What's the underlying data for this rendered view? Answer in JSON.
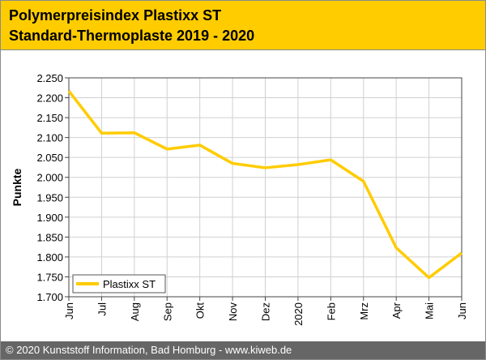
{
  "header": {
    "title_line1": "Polymerpreisindex Plastixx ST",
    "title_line2": "Standard-Thermoplaste 2019 - 2020"
  },
  "footer": {
    "text": "© 2020 Kunststoff Information, Bad Homburg - www.kiweb.de"
  },
  "colors": {
    "header_bg": "#ffcc00",
    "line": "#ffcc00",
    "footer_bg": "#666666"
  },
  "chart_data": {
    "type": "line",
    "title": "Polymerpreisindex Plastixx ST Standard-Thermoplaste 2019 - 2020",
    "xlabel": "",
    "ylabel": "Punkte",
    "categories": [
      "Jun",
      "Jul",
      "Aug",
      "Sep",
      "Okt",
      "Nov",
      "Dez",
      "2020",
      "Feb",
      "Mrz",
      "Apr",
      "Mai",
      "Jun"
    ],
    "series": [
      {
        "name": "Plastixx ST",
        "values": [
          2217,
          2111,
          2112,
          2071,
          2081,
          2035,
          2024,
          2032,
          2044,
          1990,
          1823,
          1748,
          1810
        ]
      }
    ],
    "ylim": [
      1700,
      2250
    ],
    "yticks": [
      1700,
      1750,
      1800,
      1850,
      1900,
      1950,
      2000,
      2050,
      2100,
      2150,
      2200,
      2250
    ],
    "ytick_labels": [
      "1.700",
      "1.750",
      "1.800",
      "1.850",
      "1.900",
      "1.950",
      "2.000",
      "2.050",
      "2.100",
      "2.150",
      "2.200",
      "2.250"
    ],
    "grid": true,
    "legend_position": "bottom-left"
  }
}
